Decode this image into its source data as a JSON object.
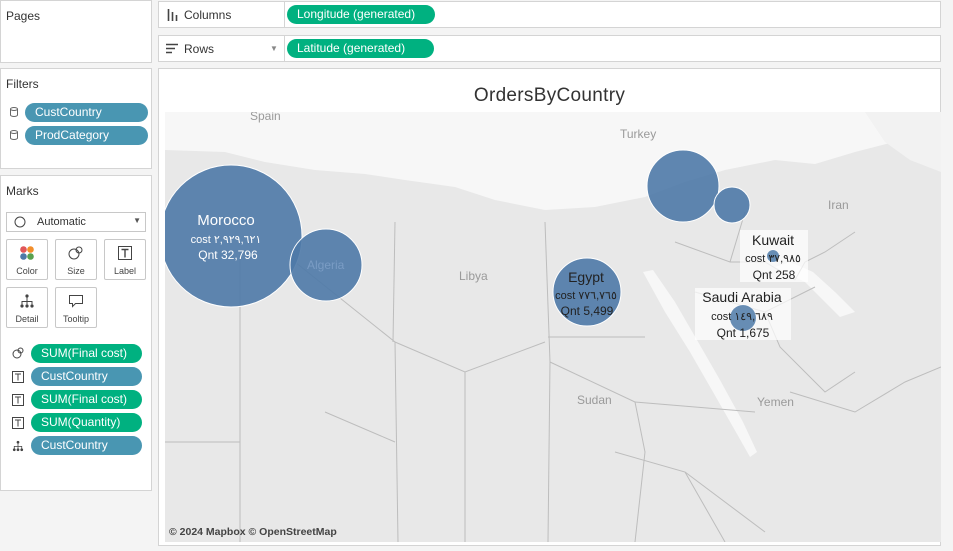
{
  "pages": {
    "title": "Pages"
  },
  "filters": {
    "title": "Filters",
    "items": [
      "CustCountry",
      "ProdCategory"
    ]
  },
  "marks": {
    "title": "Marks",
    "type_selected": "Automatic",
    "buttons": [
      "Color",
      "Size",
      "Label",
      "Detail",
      "Tooltip"
    ],
    "fields": [
      {
        "icon": "size-icon",
        "label": "SUM(Final cost)",
        "color": "green"
      },
      {
        "icon": "label-icon",
        "label": "CustCountry",
        "color": "blue"
      },
      {
        "icon": "label-icon",
        "label": "SUM(Final cost)",
        "color": "green"
      },
      {
        "icon": "label-icon",
        "label": "SUM(Quantity)",
        "color": "green"
      },
      {
        "icon": "detail-icon",
        "label": "CustCountry",
        "color": "blue"
      }
    ]
  },
  "shelves": {
    "columns_label": "Columns",
    "columns_pill": "Longitude (generated)",
    "rows_label": "Rows",
    "rows_pill": "Latitude (generated)"
  },
  "viz": {
    "title": "OrdersByCountry",
    "attribution": "© 2024 Mapbox © OpenStreetMap",
    "map_labels": [
      "Spain",
      "Turkey",
      "Iran",
      "Libya",
      "Sudan",
      "Yemen",
      "Algeria"
    ],
    "countries": [
      {
        "name": "Morocco",
        "cost": "cost ٢,٩٢٩,٦٢١",
        "qnt": "Qnt 32,796"
      },
      {
        "name": "Egypt",
        "cost": "cost ٧٧٦,٧٦٥",
        "qnt": "Qnt 5,499"
      },
      {
        "name": "Kuwait",
        "cost": "cost ٣٧,٩٨٥",
        "qnt": "Qnt 258"
      },
      {
        "name": "Saudi Arabia",
        "cost": "cost ١٤٩,٦٨٩",
        "qnt": "Qnt 1,675"
      }
    ]
  },
  "colors": {
    "green_pill": "#00b180",
    "blue_pill": "#4996b2",
    "bubble": "#4e79a7"
  }
}
